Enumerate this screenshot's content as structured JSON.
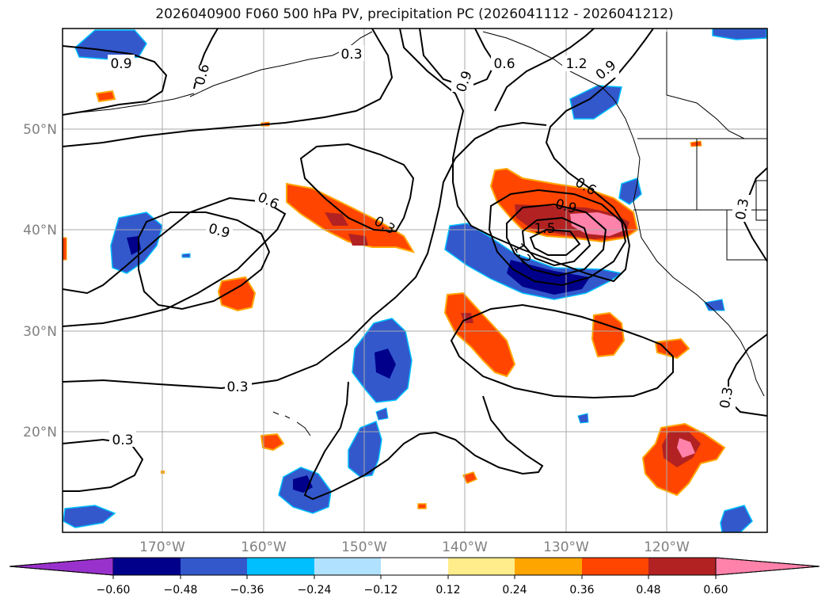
{
  "map": {
    "title": "2026040900 F060 500 hPa PV, precipitation PC (2026041112 - 2026041212)",
    "lon_labels": [
      "170°W",
      "160°W",
      "150°W",
      "140°W",
      "130°W",
      "120°W"
    ],
    "lat_labels": [
      "50°N",
      "40°N",
      "30°N",
      "20°N"
    ],
    "contour_labels": [
      "0.9",
      "0.6",
      "0.3",
      "0.6",
      "1.2",
      "0.9",
      "0.9",
      "0.6",
      "0.9",
      "0.3",
      "0.6",
      "0.9",
      "1.5",
      "1.2",
      "0.3",
      "0.3",
      "0.3"
    ],
    "colorbar": {
      "tick_labels": [
        "−0.60",
        "−0.48",
        "−0.36",
        "−0.24",
        "−0.12",
        "0.12",
        "0.24",
        "0.36",
        "0.48",
        "0.60"
      ],
      "colors": [
        "#9932cc",
        "#00008b",
        "#3358cc",
        "#00bfff",
        "#b0e2ff",
        "#ffffff",
        "#ffec8b",
        "#ffa500",
        "#ff4500",
        "#b22222",
        "#ff82ab"
      ]
    }
  }
}
